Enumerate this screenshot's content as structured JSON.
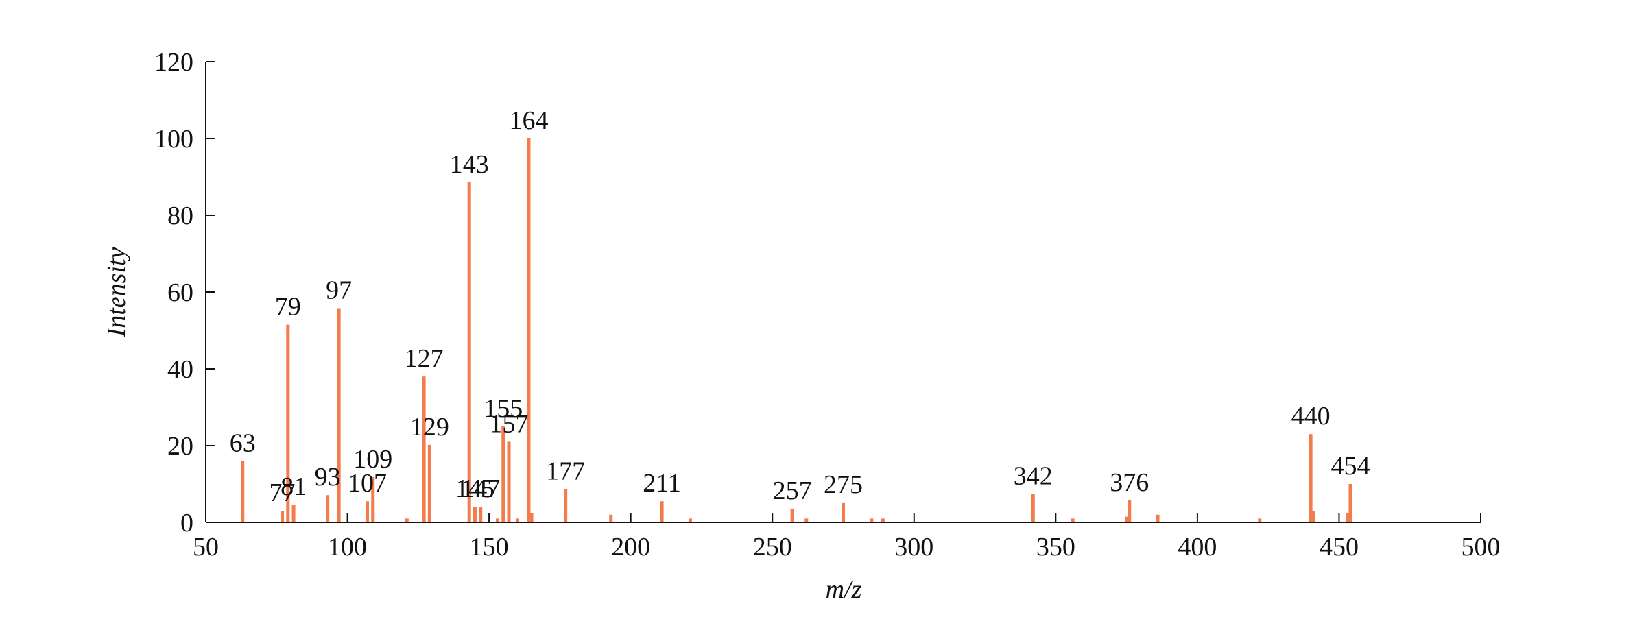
{
  "chart_data": {
    "type": "bar",
    "x_label": "m/z",
    "y_label": "Intensity",
    "x": [
      63,
      77,
      79,
      81,
      93,
      97,
      107,
      109,
      121,
      127,
      129,
      143,
      145,
      147,
      153,
      155,
      157,
      160,
      164,
      165,
      177,
      193,
      211,
      221,
      257,
      262,
      275,
      285,
      289,
      342,
      356,
      375,
      376,
      386,
      422,
      440,
      441,
      453,
      454
    ],
    "values": [
      16,
      3,
      51.5,
      4.6,
      7.1,
      55.8,
      5.5,
      11.8,
      1,
      38,
      20.2,
      88.6,
      4.1,
      4.1,
      1,
      25,
      21,
      1,
      100,
      2.5,
      8.7,
      2,
      5.5,
      1,
      3.6,
      1,
      5.2,
      1,
      1,
      7.4,
      1,
      1.5,
      5.7,
      2,
      1,
      23,
      3,
      2.5,
      10
    ],
    "annotations": [
      63,
      77,
      79,
      81,
      93,
      97,
      107,
      109,
      127,
      129,
      143,
      145,
      147,
      155,
      157,
      164,
      177,
      211,
      257,
      275,
      342,
      376,
      440,
      454
    ],
    "color": "#f47c4c",
    "xlim": [
      50,
      500
    ],
    "xticks": [
      50,
      100,
      150,
      200,
      250,
      300,
      350,
      400,
      450,
      500
    ],
    "ylim": [
      0,
      120
    ],
    "yticks": [
      0,
      20,
      40,
      60,
      80,
      100,
      120
    ]
  }
}
